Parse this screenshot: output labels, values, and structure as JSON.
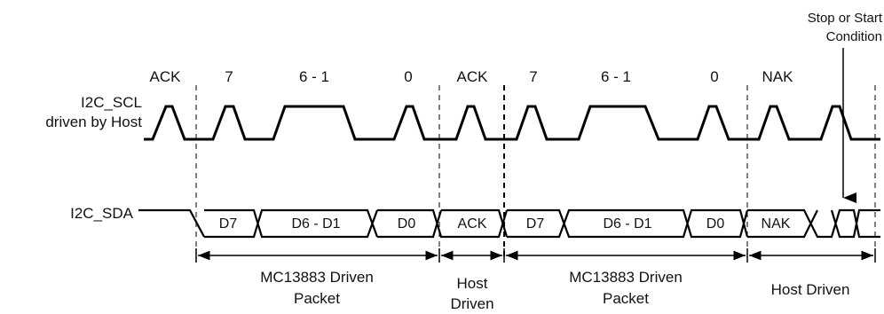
{
  "signals": {
    "scl_line1": "I2C_SCL",
    "scl_line2": "driven by Host",
    "sda": "I2C_SDA"
  },
  "bit_labels": [
    "ACK",
    "7",
    "6 - 1",
    "0",
    "ACK",
    "7",
    "6 - 1",
    "0",
    "NAK"
  ],
  "callout": {
    "line1": "Stop or Start",
    "line2": "Condition"
  },
  "sda_fields": [
    "D7",
    "D6 - D1",
    "D0",
    "ACK",
    "D7",
    "D6 - D1",
    "D0",
    "NAK"
  ],
  "spans": [
    {
      "line1": "MC13883 Driven",
      "line2": "Packet"
    },
    {
      "line1": "Host",
      "line2": "Driven"
    },
    {
      "line1": "MC13883 Driven",
      "line2": "Packet"
    },
    {
      "line1": "Host Driven",
      "line2": ""
    }
  ]
}
